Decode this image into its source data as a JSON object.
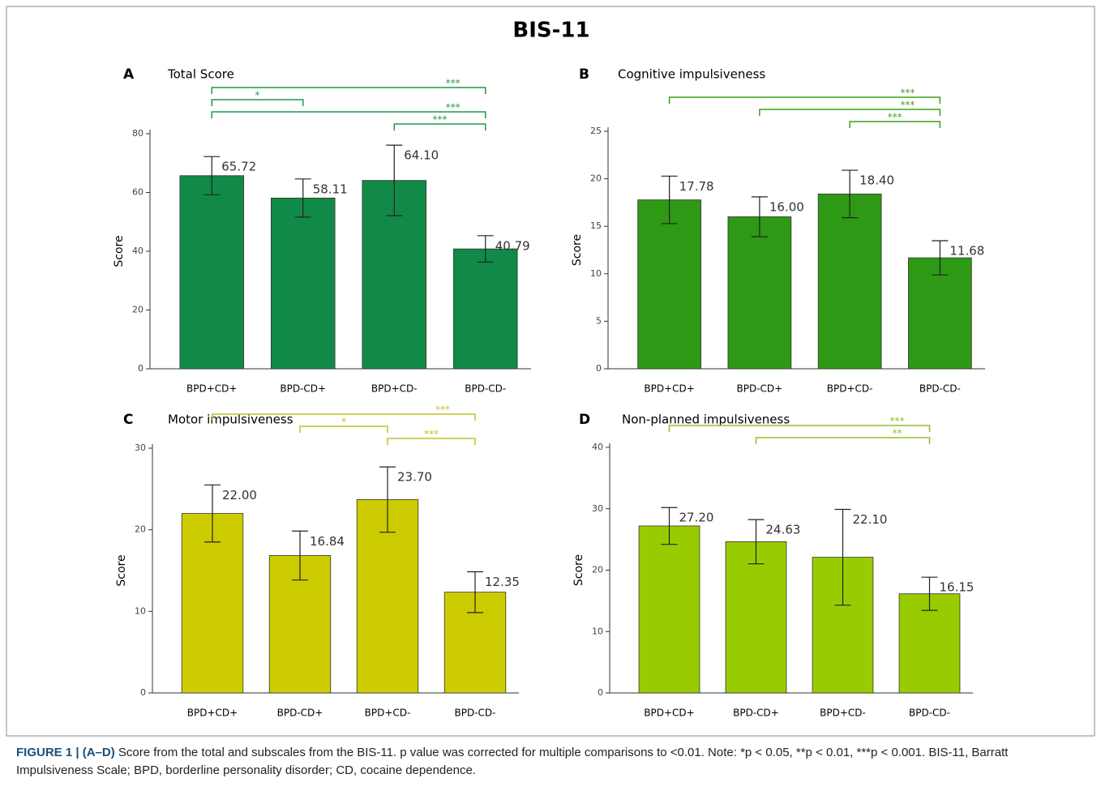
{
  "title": "BIS-11",
  "caption": {
    "label": "FIGURE 1 | (A–D)",
    "text": "Score from the total and subscales from the BIS-11. p value was corrected for multiple comparisons to <0.01. Note: *p < 0.05, **p < 0.01, ***p < 0.001. BIS-11, Barratt Impulsiveness Scale; BPD, borderline personality disorder; CD, cocaine dependence."
  },
  "chart_data": [
    {
      "type": "bar",
      "panel_label": "A",
      "title": "Total Score",
      "ylabel": "Score",
      "categories": [
        "BPD+CD+",
        "BPD-CD+",
        "BPD+CD-",
        "BPD-CD-"
      ],
      "values": [
        65.72,
        58.11,
        64.1,
        40.79
      ],
      "value_labels": [
        "65.72",
        "58.11",
        "64.10",
        "40.79"
      ],
      "errors": [
        6.5,
        6.5,
        12,
        4.5
      ],
      "color": "#118a47",
      "bracket_color": "#1f9a4a",
      "ylim": [
        0,
        80
      ],
      "yticks": [
        0,
        20,
        40,
        60,
        80
      ],
      "brackets": [
        {
          "pair": [
            0,
            3
          ],
          "label": "***"
        },
        {
          "pair": [
            0,
            1
          ],
          "label": "*"
        },
        {
          "pair": [
            0,
            3
          ],
          "label": "***"
        },
        {
          "pair": [
            2,
            3
          ],
          "label": "***"
        }
      ]
    },
    {
      "type": "bar",
      "panel_label": "B",
      "title": "Cognitive impulsiveness",
      "ylabel": "Score",
      "categories": [
        "BPD+CD+",
        "BPD-CD+",
        "BPD+CD-",
        "BPD-CD-"
      ],
      "values": [
        17.78,
        16.0,
        18.4,
        11.68
      ],
      "value_labels": [
        "17.78",
        "16.00",
        "18.40",
        "11.68"
      ],
      "errors": [
        2.5,
        2.1,
        2.5,
        1.8
      ],
      "color": "#2e9914",
      "bracket_color": "#3ea01c",
      "ylim": [
        0,
        25
      ],
      "yticks": [
        0,
        5,
        10,
        15,
        20,
        25
      ],
      "brackets": [
        {
          "pair": [
            0,
            3
          ],
          "label": "***"
        },
        {
          "pair": [
            1,
            3
          ],
          "label": "***"
        },
        {
          "pair": [
            2,
            3
          ],
          "label": "***"
        }
      ]
    },
    {
      "type": "bar",
      "panel_label": "C",
      "title": "Motor impulsiveness",
      "ylabel": "Score",
      "categories": [
        "BPD+CD+",
        "BPD-CD+",
        "BPD+CD-",
        "BPD-CD-"
      ],
      "values": [
        22.0,
        16.84,
        23.7,
        12.35
      ],
      "value_labels": [
        "22.00",
        "16.84",
        "23.70",
        "12.35"
      ],
      "errors": [
        3.5,
        3,
        4,
        2.5
      ],
      "color": "#cccc00",
      "bracket_color": "#c2c22a",
      "ylim": [
        0,
        30
      ],
      "yticks": [
        0,
        10,
        20,
        30
      ],
      "brackets": [
        {
          "pair": [
            0,
            3
          ],
          "label": "***"
        },
        {
          "pair": [
            1,
            2
          ],
          "label": "*"
        },
        {
          "pair": [
            2,
            3
          ],
          "label": "***"
        }
      ]
    },
    {
      "type": "bar",
      "panel_label": "D",
      "title": "Non-planned impulsiveness",
      "ylabel": "Score",
      "categories": [
        "BPD+CD+",
        "BPD-CD+",
        "BPD+CD-",
        "BPD-CD-"
      ],
      "values": [
        27.2,
        24.63,
        22.1,
        16.15
      ],
      "value_labels": [
        "27.20",
        "24.63",
        "22.10",
        "16.15"
      ],
      "errors": [
        3,
        3.6,
        7.8,
        2.7
      ],
      "color": "#99cc00",
      "bracket_color": "#8fbf2a",
      "ylim": [
        0,
        40
      ],
      "yticks": [
        0,
        10,
        20,
        30,
        40
      ],
      "brackets": [
        {
          "pair": [
            0,
            3
          ],
          "label": "***"
        },
        {
          "pair": [
            1,
            3
          ],
          "label": "**"
        }
      ]
    }
  ]
}
